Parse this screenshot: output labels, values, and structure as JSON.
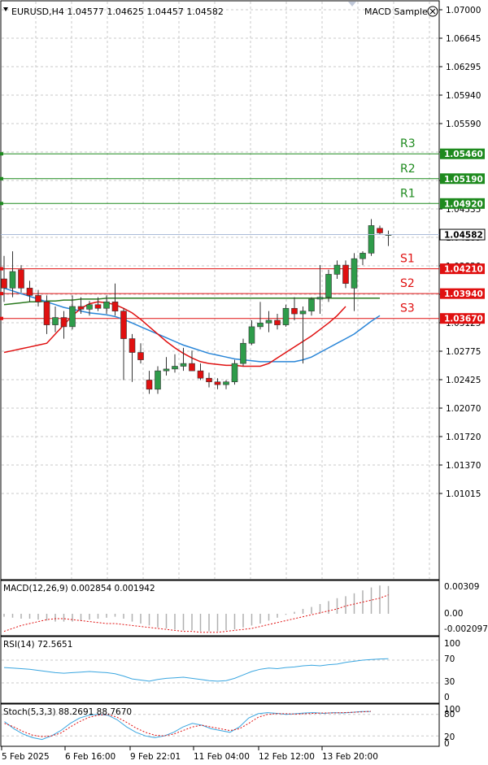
{
  "header": {
    "symbol_line": "EURUSD,H4  1.04577 1.04625 1.04457 1.04582",
    "expert_name": "MACD Sample",
    "expert_icon": "smiley-icon",
    "menu_icon": "triangle-down-icon"
  },
  "main": {
    "price_labels": [
      "1.07000",
      "1.06645",
      "1.06295",
      "1.05940",
      "1.05590",
      "1.05240",
      "1.04890",
      "1.04535",
      "1.04185",
      "1.03830",
      "1.03480",
      "1.03125",
      "1.02775",
      "1.02425",
      "1.02070",
      "1.01720",
      "1.01370",
      "1.01015"
    ],
    "current_price": "1.04582",
    "levels": [
      {
        "name": "R3",
        "price": 1.0546,
        "label": "1.05460",
        "color": "#1e8a1e"
      },
      {
        "name": "R2",
        "price": 1.0519,
        "label": "1.05190",
        "color": "#1e8a1e"
      },
      {
        "name": "R1",
        "price": 1.0492,
        "label": "1.04920",
        "color": "#1e8a1e"
      },
      {
        "name": "S1",
        "price": 1.0421,
        "label": "1.04210",
        "color": "#e01010"
      },
      {
        "name": "S2",
        "price": 1.0394,
        "label": "1.03940",
        "color": "#e01010"
      },
      {
        "name": "S3",
        "price": 1.0367,
        "label": "1.03670",
        "color": "#e01010"
      }
    ]
  },
  "indicators": {
    "macd": {
      "title": "MACD(12,26,9) 0.002854 0.001942",
      "labels": [
        "0.00309",
        "0.00",
        "-0.002097"
      ]
    },
    "rsi": {
      "title": "RSI(14) 72.5651",
      "labels": [
        "100",
        "70",
        "30",
        "0"
      ]
    },
    "stoch": {
      "title": "Stoch(5,3,3) 88.2691 88.7670",
      "labels": [
        "100",
        "80",
        "20",
        "0"
      ]
    }
  },
  "time_axis": [
    "5 Feb 2025",
    "6 Feb 16:00",
    "9 Feb 22:01",
    "11 Feb 04:00",
    "12 Feb 12:00",
    "13 Feb 20:00"
  ],
  "chart_data": {
    "type": "candlestick",
    "symbol": "EURUSD",
    "timeframe": "H4",
    "ylim": [
      1.009,
      1.0708
    ],
    "candles": [
      {
        "o": 1.041,
        "h": 1.0435,
        "l": 1.0385,
        "c": 1.04
      },
      {
        "o": 1.04,
        "h": 1.044,
        "l": 1.039,
        "c": 1.0418
      },
      {
        "o": 1.042,
        "h": 1.0425,
        "l": 1.0395,
        "c": 1.04
      },
      {
        "o": 1.04,
        "h": 1.0408,
        "l": 1.0385,
        "c": 1.0392
      },
      {
        "o": 1.0392,
        "h": 1.0398,
        "l": 1.038,
        "c": 1.0385
      },
      {
        "o": 1.0385,
        "h": 1.0392,
        "l": 1.035,
        "c": 1.036
      },
      {
        "o": 1.036,
        "h": 1.038,
        "l": 1.0352,
        "c": 1.0368
      },
      {
        "o": 1.0368,
        "h": 1.0375,
        "l": 1.0345,
        "c": 1.0358
      },
      {
        "o": 1.0358,
        "h": 1.0392,
        "l": 1.0355,
        "c": 1.038
      },
      {
        "o": 1.038,
        "h": 1.039,
        "l": 1.0372,
        "c": 1.0377
      },
      {
        "o": 1.0377,
        "h": 1.0386,
        "l": 1.037,
        "c": 1.0382
      },
      {
        "o": 1.0382,
        "h": 1.039,
        "l": 1.0375,
        "c": 1.0378
      },
      {
        "o": 1.0378,
        "h": 1.0392,
        "l": 1.0372,
        "c": 1.0385
      },
      {
        "o": 1.0385,
        "h": 1.0405,
        "l": 1.037,
        "c": 1.0375
      },
      {
        "o": 1.0375,
        "h": 1.0378,
        "l": 1.03,
        "c": 1.0345
      },
      {
        "o": 1.0345,
        "h": 1.035,
        "l": 1.0298,
        "c": 1.033
      },
      {
        "o": 1.033,
        "h": 1.034,
        "l": 1.0318,
        "c": 1.0322
      },
      {
        "o": 1.03,
        "h": 1.031,
        "l": 1.0285,
        "c": 1.029
      },
      {
        "o": 1.029,
        "h": 1.0315,
        "l": 1.0285,
        "c": 1.031
      },
      {
        "o": 1.031,
        "h": 1.0325,
        "l": 1.0305,
        "c": 1.0312
      },
      {
        "o": 1.0312,
        "h": 1.0328,
        "l": 1.0308,
        "c": 1.0315
      },
      {
        "o": 1.0315,
        "h": 1.0335,
        "l": 1.031,
        "c": 1.0318
      },
      {
        "o": 1.0318,
        "h": 1.0332,
        "l": 1.0312,
        "c": 1.031
      },
      {
        "o": 1.031,
        "h": 1.0318,
        "l": 1.03,
        "c": 1.0302
      },
      {
        "o": 1.0302,
        "h": 1.0308,
        "l": 1.0292,
        "c": 1.0298
      },
      {
        "o": 1.0298,
        "h": 1.0302,
        "l": 1.029,
        "c": 1.0295
      },
      {
        "o": 1.0295,
        "h": 1.03,
        "l": 1.029,
        "c": 1.0298
      },
      {
        "o": 1.0298,
        "h": 1.0322,
        "l": 1.0295,
        "c": 1.0318
      },
      {
        "o": 1.0318,
        "h": 1.0345,
        "l": 1.0315,
        "c": 1.034
      },
      {
        "o": 1.034,
        "h": 1.0365,
        "l": 1.0338,
        "c": 1.0358
      },
      {
        "o": 1.0358,
        "h": 1.0385,
        "l": 1.0355,
        "c": 1.0362
      },
      {
        "o": 1.0362,
        "h": 1.0375,
        "l": 1.0352,
        "c": 1.0365
      },
      {
        "o": 1.0365,
        "h": 1.0372,
        "l": 1.0355,
        "c": 1.036
      },
      {
        "o": 1.036,
        "h": 1.0382,
        "l": 1.0358,
        "c": 1.0378
      },
      {
        "o": 1.0378,
        "h": 1.039,
        "l": 1.0365,
        "c": 1.0372
      },
      {
        "o": 1.0372,
        "h": 1.038,
        "l": 1.0318,
        "c": 1.0375
      },
      {
        "o": 1.0375,
        "h": 1.039,
        "l": 1.037,
        "c": 1.0388
      },
      {
        "o": 1.0388,
        "h": 1.0425,
        "l": 1.0372,
        "c": 1.039
      },
      {
        "o": 1.039,
        "h": 1.042,
        "l": 1.0385,
        "c": 1.0415
      },
      {
        "o": 1.0415,
        "h": 1.043,
        "l": 1.041,
        "c": 1.0425
      },
      {
        "o": 1.0425,
        "h": 1.043,
        "l": 1.04,
        "c": 1.0405
      },
      {
        "o": 1.04,
        "h": 1.0438,
        "l": 1.0375,
        "c": 1.0432
      },
      {
        "o": 1.0432,
        "h": 1.044,
        "l": 1.0425,
        "c": 1.0438
      },
      {
        "o": 1.0438,
        "h": 1.0475,
        "l": 1.0435,
        "c": 1.0468
      },
      {
        "o": 1.0465,
        "h": 1.0468,
        "l": 1.0458,
        "c": 1.046
      },
      {
        "o": 1.04577,
        "h": 1.04625,
        "l": 1.04457,
        "c": 1.04582
      }
    ],
    "ma_green": [
      1.0382,
      1.0383,
      1.0384,
      1.0385,
      1.0385,
      1.0386,
      1.0386,
      1.0387,
      1.0387,
      1.0388,
      1.0388,
      1.0388,
      1.0389,
      1.0389,
      1.0389,
      1.0389,
      1.0389,
      1.0389,
      1.0389,
      1.0389,
      1.0389,
      1.0389,
      1.0389,
      1.0389,
      1.0389,
      1.0389,
      1.0389,
      1.0389,
      1.0389,
      1.0389,
      1.0389,
      1.0389,
      1.0389,
      1.0389,
      1.0389,
      1.0389,
      1.0389,
      1.0389,
      1.0389,
      1.0389,
      1.0389,
      1.0389,
      1.0389,
      1.0389,
      1.0389
    ],
    "ma_blue": [
      1.04,
      1.0397,
      1.0394,
      1.0391,
      1.0388,
      1.0385,
      1.0382,
      1.0379,
      1.0377,
      1.0375,
      1.0373,
      1.0372,
      1.0371,
      1.0369,
      1.0366,
      1.0362,
      1.0358,
      1.0354,
      1.035,
      1.0346,
      1.0342,
      1.0338,
      1.0335,
      1.0332,
      1.0329,
      1.0327,
      1.0325,
      1.0323,
      1.0322,
      1.0321,
      1.032,
      1.032,
      1.032,
      1.032,
      1.032,
      1.0322,
      1.0325,
      1.033,
      1.0335,
      1.034,
      1.0345,
      1.035,
      1.0357,
      1.0364,
      1.037
    ],
    "ma_red": [
      1.033,
      1.0332,
      1.0334,
      1.0336,
      1.0338,
      1.034,
      1.035,
      1.036,
      1.037,
      1.0378,
      1.0383,
      1.0385,
      1.0384,
      1.0382,
      1.0378,
      1.0373,
      1.0366,
      1.0358,
      1.035,
      1.0342,
      1.0335,
      1.0329,
      1.0324,
      1.032,
      1.0318,
      1.0317,
      1.0316,
      1.0316,
      1.0315,
      1.0315,
      1.0315,
      1.0318,
      1.0324,
      1.033,
      1.0336,
      1.0342,
      1.0348,
      1.0355,
      1.0362,
      1.037,
      1.038
    ],
    "macd_hist": [
      -0.0003,
      -0.0004,
      -0.0005,
      -0.0005,
      -0.0006,
      -0.0007,
      -0.0008,
      -0.0008,
      -0.0008,
      -0.0007,
      -0.0006,
      -0.0005,
      -0.0004,
      -0.0003,
      -0.0005,
      -0.0008,
      -0.001,
      -0.0012,
      -0.0014,
      -0.0015,
      -0.0016,
      -0.0017,
      -0.0017,
      -0.0018,
      -0.0018,
      -0.0018,
      -0.0017,
      -0.0016,
      -0.0014,
      -0.0012,
      -0.001,
      -0.0007,
      -0.0004,
      -0.0001,
      0.0002,
      0.0005,
      0.0007,
      0.001,
      0.0013,
      0.0016,
      0.0018,
      0.0021,
      0.0024,
      0.0027,
      0.0029,
      0.00285
    ],
    "macd_signal": [
      -0.0018,
      -0.0015,
      -0.0012,
      -0.001,
      -0.0008,
      -0.0006,
      -0.0005,
      -0.0005,
      -0.0006,
      -0.0007,
      -0.0008,
      -0.0009,
      -0.001,
      -0.001,
      -0.0011,
      -0.0012,
      -0.0013,
      -0.0014,
      -0.0015,
      -0.0016,
      -0.0017,
      -0.0018,
      -0.0018,
      -0.0019,
      -0.0019,
      -0.0019,
      -0.0018,
      -0.0017,
      -0.0016,
      -0.0015,
      -0.0013,
      -0.0011,
      -0.0009,
      -0.0007,
      -0.0005,
      -0.0003,
      -0.0001,
      0.0001,
      0.0003,
      0.0005,
      0.0008,
      0.001,
      0.0012,
      0.0014,
      0.0016,
      0.00194
    ],
    "rsi": [
      57,
      56,
      55,
      54,
      52,
      50,
      48,
      47,
      48,
      49,
      50,
      49,
      48,
      46,
      42,
      37,
      35,
      33,
      36,
      38,
      39,
      40,
      38,
      36,
      34,
      33,
      34,
      38,
      44,
      50,
      54,
      56,
      55,
      57,
      58,
      60,
      61,
      60,
      62,
      63,
      66,
      68,
      70,
      71,
      72,
      72.57
    ],
    "stoch_k": [
      60,
      40,
      25,
      15,
      10,
      20,
      35,
      55,
      70,
      78,
      80,
      78,
      65,
      45,
      30,
      20,
      15,
      20,
      30,
      45,
      55,
      50,
      40,
      35,
      30,
      45,
      70,
      82,
      85,
      83,
      80,
      82,
      84,
      85,
      83,
      85,
      84,
      86,
      88,
      88.27
    ],
    "stoch_d": [
      55,
      45,
      32,
      22,
      18,
      20,
      28,
      45,
      60,
      72,
      78,
      80,
      72,
      58,
      42,
      30,
      22,
      20,
      25,
      35,
      45,
      50,
      45,
      40,
      35,
      40,
      55,
      72,
      80,
      82,
      82,
      81,
      82,
      83,
      84,
      84,
      85,
      86,
      87,
      88.77
    ]
  }
}
